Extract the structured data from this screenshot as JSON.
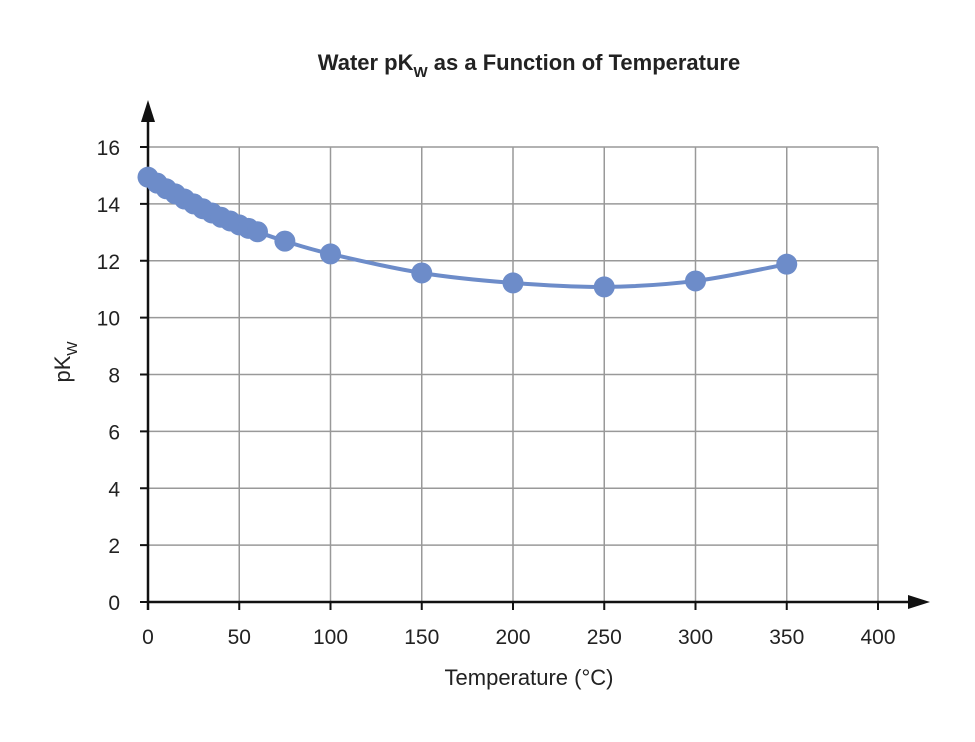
{
  "chart_data": {
    "type": "line",
    "title": {
      "main": "Water pK",
      "sub": "W",
      "rest": " as a Function of Temperature"
    },
    "xlabel": "Temperature (°C)",
    "ylabel": {
      "main": "pK",
      "sub": "W"
    },
    "xlim": [
      0,
      400
    ],
    "ylim": [
      0,
      16
    ],
    "xticks": [
      0,
      50,
      100,
      150,
      200,
      250,
      300,
      350,
      400
    ],
    "yticks": [
      0,
      2,
      4,
      6,
      8,
      10,
      12,
      14,
      16
    ],
    "grid": true,
    "markers": true,
    "smooth_curve": true,
    "color": "#6d8cc9",
    "series": [
      {
        "x": [
          0,
          5,
          10,
          15,
          20,
          25,
          30,
          35,
          40,
          45,
          50,
          55,
          60,
          75,
          100,
          150,
          200,
          250,
          300,
          350
        ],
        "y": [
          14.94,
          14.73,
          14.53,
          14.35,
          14.17,
          14.0,
          13.83,
          13.68,
          13.53,
          13.4,
          13.26,
          13.14,
          13.02,
          12.69,
          12.24,
          11.57,
          11.22,
          11.08,
          11.29,
          11.88
        ]
      }
    ]
  }
}
